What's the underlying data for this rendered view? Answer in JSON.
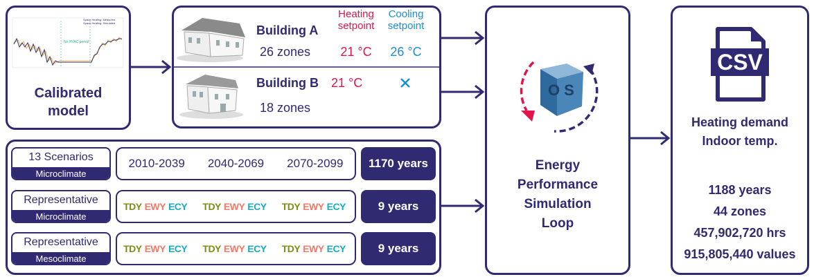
{
  "calibrated": {
    "legend": [
      "Space Heating: Measured",
      "Space Heating: Simulated"
    ],
    "annotation": "No HVAC period",
    "lines": [
      "Calibrated",
      "model"
    ]
  },
  "buildings": {
    "heating_header": [
      "Heating",
      "setpoint"
    ],
    "cooling_header": [
      "Cooling",
      "setpoint"
    ],
    "items": [
      {
        "name": "Building A",
        "zones": "26 zones",
        "heating": "21 °C",
        "cooling": "26 °C"
      },
      {
        "name": "Building B",
        "zones": "18 zones",
        "heating": "21 °C"
      }
    ]
  },
  "scenarios": {
    "rows": [
      {
        "label": "13 Scenarios",
        "sublabel": "Microclimate",
        "periods": [
          "2010-2039",
          "2040-2069",
          "2070-2099"
        ],
        "result": "1170 years"
      },
      {
        "label": "Representative",
        "sublabel": "Microclimate",
        "groups": [
          [
            "TDY",
            "EWY",
            "ECY"
          ],
          [
            "TDY",
            "EWY",
            "ECY"
          ],
          [
            "TDY",
            "EWY",
            "ECY"
          ]
        ],
        "result": "9 years"
      },
      {
        "label": "Representative",
        "sublabel": "Mesoclimate",
        "groups": [
          [
            "TDY",
            "EWY",
            "ECY"
          ],
          [
            "TDY",
            "EWY",
            "ECY"
          ],
          [
            "TDY",
            "EWY",
            "ECY"
          ]
        ],
        "result": "9 years"
      }
    ]
  },
  "simulation": {
    "icon_label": "OS",
    "lines": [
      "Energy",
      "Performance",
      "Simulation",
      "Loop"
    ]
  },
  "output": {
    "icon_label": "CSV",
    "variables": [
      "Heating demand",
      "Indoor temp."
    ],
    "stats": [
      "1188 years",
      "44 zones",
      "457,902,720 hrs",
      "915,805,440 values"
    ]
  }
}
